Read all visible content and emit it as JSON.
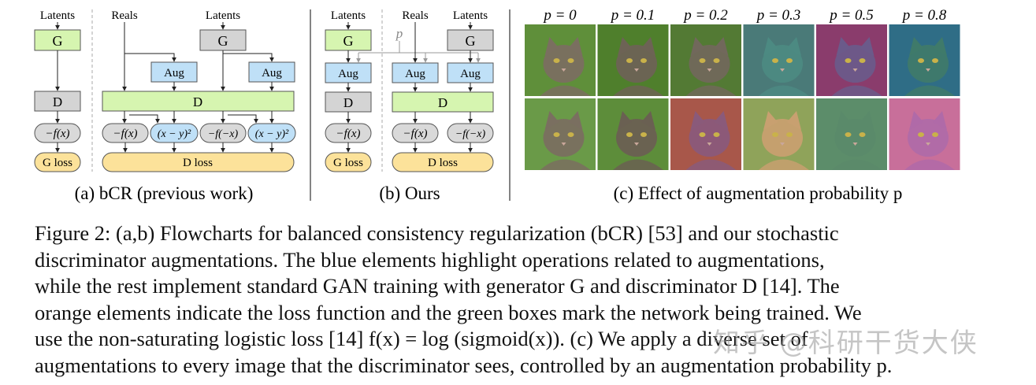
{
  "panel_a": {
    "latents_left": "Latents",
    "reals": "Reals",
    "latents_right": "Latents",
    "g_box": "G",
    "g_box_right": "G",
    "d_box_left": "D",
    "d_box_wide": "D",
    "aug_1": "Aug",
    "aug_2": "Aug",
    "neg_fx_left": "−f(x)",
    "neg_fx": "−f(x)",
    "sq_1": "(x − y)²",
    "neg_f_negx": "−f(−x)",
    "sq_2": "(x − y)²",
    "g_loss": "G loss",
    "d_loss": "D loss",
    "caption": "(a) bCR (previous work)"
  },
  "panel_b": {
    "latents_left": "Latents",
    "reals": "Reals",
    "latents_right": "Latents",
    "p_label": "p",
    "g_box": "G",
    "g_box_right": "G",
    "aug_1": "Aug",
    "aug_2": "Aug",
    "aug_3": "Aug",
    "d_box_left": "D",
    "d_box_wide": "D",
    "neg_fx_left": "−f(x)",
    "neg_fx": "−f(x)",
    "neg_f_negx": "−f(−x)",
    "g_loss": "G loss",
    "d_loss": "D loss",
    "caption": "(b) Ours"
  },
  "panel_c": {
    "columns": [
      "p = 0",
      "p = 0.1",
      "p = 0.2",
      "p = 0.3",
      "p = 0.5",
      "p = 0.8"
    ],
    "caption": "(c) Effect of augmentation probability p"
  },
  "caption": {
    "line1": "Figure 2: (a,b) Flowcharts for balanced consistency regularization (bCR) [53] and our stochastic",
    "line2": "discriminator augmentations. The blue elements highlight operations related to augmentations,",
    "line3": "while the rest implement standard GAN training with generator G and discriminator D [14]. The",
    "line4": "orange elements indicate the loss function and the green boxes mark the network being trained. We",
    "line5": "use the non-saturating logistic loss [14] f(x) = log (sigmoid(x)). (c) We apply a diverse set of",
    "line6": "augmentations to every image that the discriminator sees, controlled by an augmentation probability p."
  },
  "watermark": "知乎 @科研干货大侠",
  "colors": {
    "green_box": "#d6f5b0",
    "gray_box": "#d4d4d4",
    "blue_box": "#bfe0f7",
    "orange_box": "#fce29a",
    "loss_gray": "#d9d9d9"
  },
  "icons": [
    "cat-photo-icon"
  ]
}
